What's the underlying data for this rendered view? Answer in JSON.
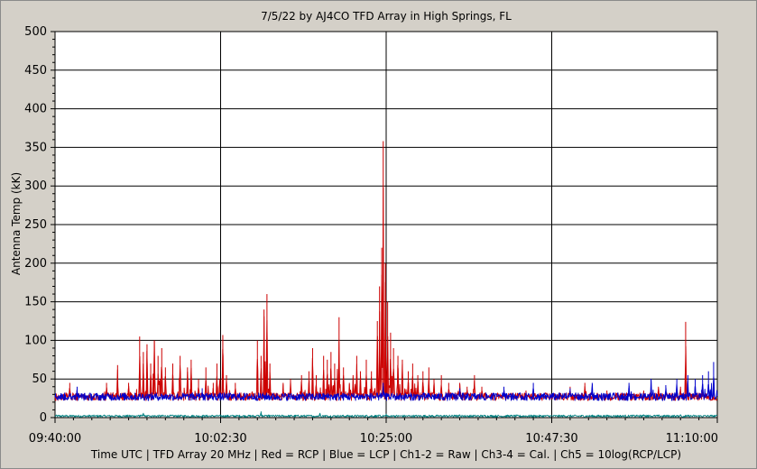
{
  "chart_data": {
    "type": "line",
    "title": "7/5/22  by  AJ4CO TFD Array  in  High Springs, FL",
    "ylabel": "Antenna Temp (kK)",
    "xlabel": "Time UTC | TFD Array 20 MHz | Red = RCP | Blue = LCP | Ch1-2 = Raw | Ch3-4 = Cal. | Ch5 = 10log(RCP/LCP)",
    "ylim": [
      0,
      500
    ],
    "yticks": [
      "0",
      "50",
      "100",
      "150",
      "200",
      "250",
      "300",
      "350",
      "400",
      "450",
      "500"
    ],
    "x_range_minutes": [
      0,
      90
    ],
    "xticks": [
      "09:40:00",
      "10:02:30",
      "10:25:00",
      "10:47:30",
      "11:10:00"
    ],
    "grid": true,
    "series": [
      {
        "name": "RCP",
        "color": "#cc0000",
        "baseline": 27,
        "peaks": [
          {
            "t": 2,
            "v": 45
          },
          {
            "t": 7,
            "v": 45
          },
          {
            "t": 8.5,
            "v": 68
          },
          {
            "t": 10,
            "v": 45
          },
          {
            "t": 11.5,
            "v": 105
          },
          {
            "t": 12,
            "v": 85
          },
          {
            "t": 12.5,
            "v": 95
          },
          {
            "t": 13,
            "v": 70
          },
          {
            "t": 13.5,
            "v": 100
          },
          {
            "t": 14,
            "v": 80
          },
          {
            "t": 14.5,
            "v": 90
          },
          {
            "t": 15,
            "v": 65
          },
          {
            "t": 16,
            "v": 70
          },
          {
            "t": 17,
            "v": 80
          },
          {
            "t": 18,
            "v": 65
          },
          {
            "t": 18.5,
            "v": 75
          },
          {
            "t": 19.5,
            "v": 50
          },
          {
            "t": 20.5,
            "v": 65
          },
          {
            "t": 21.5,
            "v": 45
          },
          {
            "t": 22,
            "v": 70
          },
          {
            "t": 22.4,
            "v": 50
          },
          {
            "t": 22.8,
            "v": 107
          },
          {
            "t": 23.3,
            "v": 55
          },
          {
            "t": 24.5,
            "v": 45
          },
          {
            "t": 27.5,
            "v": 100
          },
          {
            "t": 28,
            "v": 80
          },
          {
            "t": 28.4,
            "v": 140
          },
          {
            "t": 28.8,
            "v": 160
          },
          {
            "t": 29.2,
            "v": 70
          },
          {
            "t": 31,
            "v": 45
          },
          {
            "t": 32,
            "v": 50
          },
          {
            "t": 33.5,
            "v": 55
          },
          {
            "t": 34.5,
            "v": 60
          },
          {
            "t": 35,
            "v": 90
          },
          {
            "t": 35.5,
            "v": 55
          },
          {
            "t": 36.5,
            "v": 80
          },
          {
            "t": 37,
            "v": 75
          },
          {
            "t": 37.5,
            "v": 85
          },
          {
            "t": 38,
            "v": 70
          },
          {
            "t": 38.6,
            "v": 130
          },
          {
            "t": 39.2,
            "v": 65
          },
          {
            "t": 40,
            "v": 45
          },
          {
            "t": 40.5,
            "v": 55
          },
          {
            "t": 41,
            "v": 80
          },
          {
            "t": 41.5,
            "v": 60
          },
          {
            "t": 42.3,
            "v": 75
          },
          {
            "t": 43,
            "v": 60
          },
          {
            "t": 43.8,
            "v": 125
          },
          {
            "t": 44.1,
            "v": 170
          },
          {
            "t": 44.4,
            "v": 220
          },
          {
            "t": 44.6,
            "v": 358
          },
          {
            "t": 44.9,
            "v": 200
          },
          {
            "t": 45.2,
            "v": 150
          },
          {
            "t": 45.6,
            "v": 110
          },
          {
            "t": 46,
            "v": 90
          },
          {
            "t": 46.6,
            "v": 80
          },
          {
            "t": 47.2,
            "v": 75
          },
          {
            "t": 48,
            "v": 60
          },
          {
            "t": 48.6,
            "v": 70
          },
          {
            "t": 49.3,
            "v": 55
          },
          {
            "t": 50,
            "v": 60
          },
          {
            "t": 50.8,
            "v": 65
          },
          {
            "t": 51.5,
            "v": 50
          },
          {
            "t": 52.5,
            "v": 55
          },
          {
            "t": 53.5,
            "v": 45
          },
          {
            "t": 55,
            "v": 45
          },
          {
            "t": 56,
            "v": 40
          },
          {
            "t": 57,
            "v": 55
          },
          {
            "t": 58,
            "v": 40
          },
          {
            "t": 61,
            "v": 35
          },
          {
            "t": 64,
            "v": 35
          },
          {
            "t": 70,
            "v": 40
          },
          {
            "t": 72,
            "v": 45
          },
          {
            "t": 75,
            "v": 35
          },
          {
            "t": 80,
            "v": 35
          },
          {
            "t": 82,
            "v": 40
          },
          {
            "t": 85,
            "v": 40
          },
          {
            "t": 85.7,
            "v": 124
          },
          {
            "t": 88,
            "v": 40
          }
        ]
      },
      {
        "name": "LCP",
        "color": "#0000cc",
        "baseline": 27,
        "peaks": [
          {
            "t": 3,
            "v": 40
          },
          {
            "t": 20,
            "v": 38
          },
          {
            "t": 44.6,
            "v": 45
          },
          {
            "t": 55,
            "v": 38
          },
          {
            "t": 61,
            "v": 40
          },
          {
            "t": 65,
            "v": 45
          },
          {
            "t": 70,
            "v": 38
          },
          {
            "t": 73,
            "v": 45
          },
          {
            "t": 78,
            "v": 45
          },
          {
            "t": 81,
            "v": 50
          },
          {
            "t": 83,
            "v": 42
          },
          {
            "t": 84.5,
            "v": 50
          },
          {
            "t": 86,
            "v": 55
          },
          {
            "t": 87,
            "v": 50
          },
          {
            "t": 88,
            "v": 55
          },
          {
            "t": 88.8,
            "v": 60
          },
          {
            "t": 89.5,
            "v": 72
          }
        ]
      },
      {
        "name": "Ch5",
        "color": "#008080",
        "baseline": 2,
        "peaks": [
          {
            "t": 12,
            "v": 6
          },
          {
            "t": 28,
            "v": 8
          },
          {
            "t": 36,
            "v": 6
          },
          {
            "t": 45,
            "v": 5
          },
          {
            "t": 55,
            "v": 4
          },
          {
            "t": 80,
            "v": 4
          },
          {
            "t": 85,
            "v": 4
          }
        ]
      }
    ]
  }
}
